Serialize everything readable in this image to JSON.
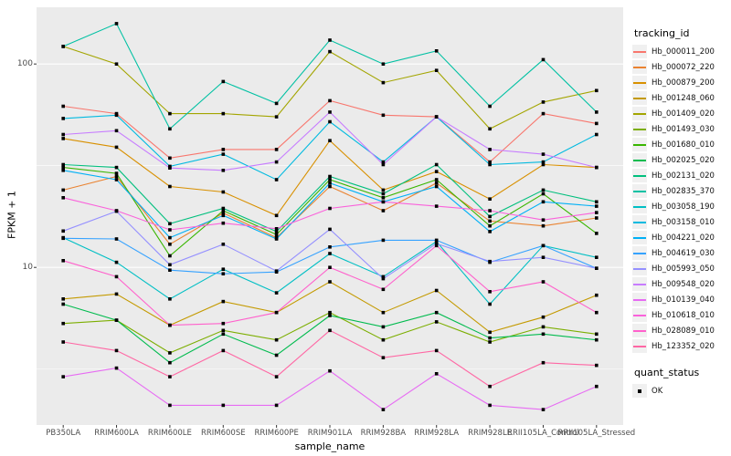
{
  "colors": {
    "page_bg": "#FFFFFF",
    "panel_bg": "#EBEBEB",
    "grid": "#FFFFFF",
    "tick_text": "#4D4D4D",
    "axis_title_text": "#000000",
    "point": "#000000",
    "legend_key_bg": "#F0F0F0"
  },
  "chart_data": {
    "type": "line",
    "title": "",
    "xlabel": "sample_name",
    "ylabel": "FPKM + 1",
    "y_scale": "log10",
    "ylim": [
      1.68,
      190
    ],
    "y_major_gridlines": [
      10,
      100
    ],
    "y_minor_gridlines": [
      3.162,
      31.62
    ],
    "y_tick_labels": [
      "100",
      "10"
    ],
    "y_tick_values": [
      100,
      10
    ],
    "grid": "on",
    "legend_position": "right",
    "legend_title": "tracking_id",
    "point_marker": "black-square",
    "categories": [
      "PB350LA",
      "RRIM600LA",
      "RRIM600LE",
      "RRIM600SE",
      "RRIM600PE",
      "RRIM901LA",
      "RRIM928BA",
      "RRIM928LA",
      "RRIM928LE",
      "RRII105LA_Control",
      "RRII105LA_Stressed"
    ],
    "series": [
      {
        "name": "Hb_000011_200",
        "color": "#F8766D",
        "values": [
          62,
          57,
          34.5,
          38,
          38,
          66,
          56,
          55,
          33,
          57,
          51
        ]
      },
      {
        "name": "Hb_000072_220",
        "color": "#EA8331",
        "values": [
          24,
          28,
          13,
          18.5,
          14,
          25,
          19,
          26,
          16.9,
          16,
          17.5
        ]
      },
      {
        "name": "Hb_000879_200",
        "color": "#D89000",
        "values": [
          43,
          39,
          25,
          23.5,
          18,
          42,
          24,
          29.6,
          21.7,
          32,
          31
        ]
      },
      {
        "name": "Hb_001248_060",
        "color": "#C49A00",
        "values": [
          7.0,
          7.4,
          5.2,
          6.8,
          6.0,
          8.5,
          6.0,
          7.7,
          4.8,
          5.7,
          7.3
        ]
      },
      {
        "name": "Hb_001409_020",
        "color": "#A3A500",
        "values": [
          122,
          100,
          57,
          57,
          55,
          115,
          81,
          93,
          48,
          65,
          74
        ]
      },
      {
        "name": "Hb_001493_030",
        "color": "#7CAE00",
        "values": [
          5.3,
          5.5,
          3.8,
          4.9,
          4.4,
          6.0,
          4.4,
          5.4,
          4.3,
          5.1,
          4.7
        ]
      },
      {
        "name": "Hb_001680_010",
        "color": "#39B600",
        "values": [
          31,
          29,
          11.4,
          19,
          14.5,
          27,
          22,
          27,
          16,
          23,
          14.7
        ]
      },
      {
        "name": "Hb_002025_020",
        "color": "#00BB4E",
        "values": [
          6.6,
          5.5,
          3.4,
          4.7,
          3.7,
          5.8,
          5.1,
          6.0,
          4.5,
          4.7,
          4.4
        ]
      },
      {
        "name": "Hb_002131_020",
        "color": "#00BF7D",
        "values": [
          32,
          31,
          16.4,
          19.5,
          15,
          28,
          23,
          32,
          17.8,
          24,
          21
        ]
      },
      {
        "name": "Hb_002835_370",
        "color": "#00C1A3",
        "values": [
          122,
          158,
          48,
          82,
          64,
          131,
          100,
          116,
          62,
          105,
          58
        ]
      },
      {
        "name": "Hb_003058_190",
        "color": "#00BFC4",
        "values": [
          14,
          10.6,
          7.0,
          9.8,
          7.5,
          11.7,
          9.0,
          13.4,
          6.6,
          12.8,
          11.2
        ]
      },
      {
        "name": "Hb_003158_010",
        "color": "#00BAE0",
        "values": [
          54,
          56,
          31.4,
          36,
          27,
          52,
          33,
          55,
          32,
          33,
          45
        ]
      },
      {
        "name": "Hb_004221_020",
        "color": "#00B0F6",
        "values": [
          30,
          27,
          14,
          18,
          13.8,
          26,
          21,
          25,
          15,
          21,
          20
        ]
      },
      {
        "name": "Hb_004619_030",
        "color": "#35A2FF",
        "values": [
          13.9,
          13.8,
          9.7,
          9.3,
          9.5,
          12.6,
          13.6,
          13.6,
          10.6,
          12.8,
          9.9
        ]
      },
      {
        "name": "Hb_005993_050",
        "color": "#9590FF",
        "values": [
          15.1,
          18.9,
          10.3,
          13.0,
          9.6,
          15.4,
          8.8,
          13.1,
          10.7,
          11.2,
          9.9
        ]
      },
      {
        "name": "Hb_009548_020",
        "color": "#C77CFF",
        "values": [
          45,
          47,
          30.8,
          30,
          33,
          58,
          32,
          55,
          38,
          36,
          31
        ]
      },
      {
        "name": "Hb_010139_040",
        "color": "#E76BF3",
        "values": [
          2.9,
          3.2,
          2.1,
          2.1,
          2.1,
          3.1,
          2.0,
          3.0,
          2.1,
          2.0,
          2.6
        ]
      },
      {
        "name": "Hb_010618_010",
        "color": "#FA62DB",
        "values": [
          22,
          19,
          15.3,
          16.5,
          15.5,
          19.5,
          21,
          20,
          19,
          17.1,
          18.6
        ]
      },
      {
        "name": "Hb_028089_010",
        "color": "#FF61CC",
        "values": [
          10.8,
          9.0,
          5.2,
          5.3,
          6.0,
          10.0,
          7.8,
          12.8,
          7.6,
          8.5,
          6.0
        ]
      },
      {
        "name": "Hb_123352_020",
        "color": "#FF67A4",
        "values": [
          4.3,
          3.9,
          2.9,
          3.9,
          2.9,
          4.9,
          3.6,
          3.9,
          2.6,
          3.4,
          3.3
        ]
      }
    ],
    "quant_legend": {
      "title": "quant_status",
      "items": [
        "OK"
      ]
    }
  }
}
